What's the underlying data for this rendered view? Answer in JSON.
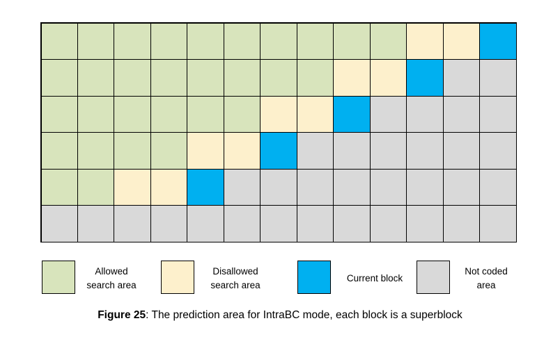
{
  "colors": {
    "allowed": "#d8e4bc",
    "disallowed": "#fdf0cc",
    "current": "#00b0f0",
    "not_coded": "#d9d9d9"
  },
  "grid": {
    "rows": [
      [
        "A",
        "A",
        "A",
        "A",
        "A",
        "A",
        "A",
        "A",
        "A",
        "A",
        "D",
        "D",
        "C"
      ],
      [
        "A",
        "A",
        "A",
        "A",
        "A",
        "A",
        "A",
        "A",
        "D",
        "D",
        "C",
        "N",
        "N"
      ],
      [
        "A",
        "A",
        "A",
        "A",
        "A",
        "A",
        "D",
        "D",
        "C",
        "N",
        "N",
        "N",
        "N"
      ],
      [
        "A",
        "A",
        "A",
        "A",
        "D",
        "D",
        "C",
        "N",
        "N",
        "N",
        "N",
        "N",
        "N"
      ],
      [
        "A",
        "A",
        "D",
        "D",
        "C",
        "N",
        "N",
        "N",
        "N",
        "N",
        "N",
        "N",
        "N"
      ],
      [
        "N",
        "N",
        "N",
        "N",
        "N",
        "N",
        "N",
        "N",
        "N",
        "N",
        "N",
        "N",
        "N"
      ]
    ]
  },
  "legend": {
    "allowed": "Allowed\nsearch area",
    "disallowed": "Disallowed\nsearch area",
    "current": "Current block",
    "not_coded": "Not coded\narea"
  },
  "caption": {
    "figure": "Figure 25",
    "text": ": The prediction area for IntraBC mode, each block is a superblock"
  }
}
